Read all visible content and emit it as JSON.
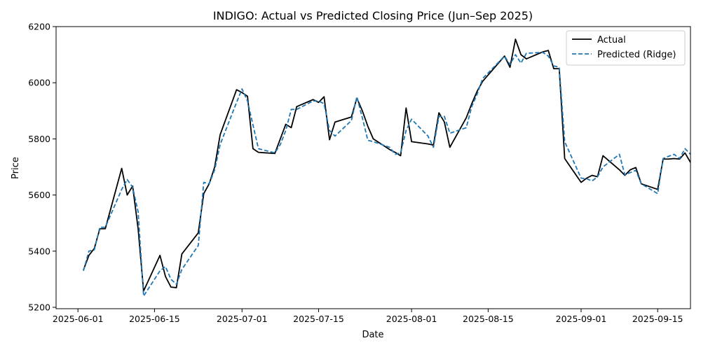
{
  "chart_data": {
    "type": "line",
    "title": "INDIGO: Actual vs Predicted Closing Price (Jun–Sep 2025)",
    "xlabel": "Date",
    "ylabel": "Price",
    "xlim": [
      "2025-05-28",
      "2025-09-21"
    ],
    "ylim": [
      5195,
      6200
    ],
    "x_ticks": [
      "2025-06-01",
      "2025-06-15",
      "2025-07-01",
      "2025-07-15",
      "2025-08-01",
      "2025-08-15",
      "2025-09-01",
      "2025-09-15"
    ],
    "y_ticks": [
      5200,
      5400,
      5600,
      5800,
      6000,
      6200
    ],
    "grid": false,
    "legend": "top-right",
    "series": [
      {
        "name": "Actual",
        "color": "#000000",
        "style": "solid",
        "points": [
          [
            "2025-06-02",
            5333
          ],
          [
            "2025-06-03",
            5385
          ],
          [
            "2025-06-04",
            5410
          ],
          [
            "2025-06-05",
            5480
          ],
          [
            "2025-06-06",
            5480
          ],
          [
            "2025-06-09",
            5695
          ],
          [
            "2025-06-10",
            5600
          ],
          [
            "2025-06-11",
            5632
          ],
          [
            "2025-06-12",
            5480
          ],
          [
            "2025-06-13",
            5258
          ],
          [
            "2025-06-16",
            5385
          ],
          [
            "2025-06-17",
            5310
          ],
          [
            "2025-06-18",
            5272
          ],
          [
            "2025-06-19",
            5270
          ],
          [
            "2025-06-20",
            5390
          ],
          [
            "2025-06-23",
            5465
          ],
          [
            "2025-06-24",
            5605
          ],
          [
            "2025-06-25",
            5640
          ],
          [
            "2025-06-26",
            5700
          ],
          [
            "2025-06-27",
            5815
          ],
          [
            "2025-06-30",
            5975
          ],
          [
            "2025-07-01",
            5965
          ],
          [
            "2025-07-02",
            5952
          ],
          [
            "2025-07-03",
            5765
          ],
          [
            "2025-07-04",
            5752
          ],
          [
            "2025-07-07",
            5748
          ],
          [
            "2025-07-08",
            5800
          ],
          [
            "2025-07-09",
            5852
          ],
          [
            "2025-07-10",
            5840
          ],
          [
            "2025-07-11",
            5915
          ],
          [
            "2025-07-14",
            5940
          ],
          [
            "2025-07-15",
            5930
          ],
          [
            "2025-07-16",
            5950
          ],
          [
            "2025-07-17",
            5797
          ],
          [
            "2025-07-18",
            5860
          ],
          [
            "2025-07-21",
            5878
          ],
          [
            "2025-07-22",
            5945
          ],
          [
            "2025-07-23",
            5900
          ],
          [
            "2025-07-24",
            5845
          ],
          [
            "2025-07-25",
            5800
          ],
          [
            "2025-07-28",
            5762
          ],
          [
            "2025-07-29",
            5752
          ],
          [
            "2025-07-30",
            5740
          ],
          [
            "2025-07-31",
            5910
          ],
          [
            "2025-08-01",
            5790
          ],
          [
            "2025-08-04",
            5782
          ],
          [
            "2025-08-05",
            5778
          ],
          [
            "2025-08-06",
            5893
          ],
          [
            "2025-08-07",
            5860
          ],
          [
            "2025-08-08",
            5770
          ],
          [
            "2025-08-11",
            5875
          ],
          [
            "2025-08-12",
            5925
          ],
          [
            "2025-08-13",
            5970
          ],
          [
            "2025-08-14",
            6005
          ],
          [
            "2025-08-18",
            6095
          ],
          [
            "2025-08-19",
            6055
          ],
          [
            "2025-08-20",
            6155
          ],
          [
            "2025-08-21",
            6100
          ],
          [
            "2025-08-22",
            6085
          ],
          [
            "2025-08-25",
            6110
          ],
          [
            "2025-08-26",
            6115
          ],
          [
            "2025-08-27",
            6050
          ],
          [
            "2025-08-28",
            6050
          ],
          [
            "2025-08-29",
            5730
          ],
          [
            "2025-09-01",
            5645
          ],
          [
            "2025-09-02",
            5660
          ],
          [
            "2025-09-03",
            5670
          ],
          [
            "2025-09-04",
            5665
          ],
          [
            "2025-09-05",
            5740
          ],
          [
            "2025-09-08",
            5690
          ],
          [
            "2025-09-09",
            5670
          ],
          [
            "2025-09-10",
            5690
          ],
          [
            "2025-09-11",
            5698
          ],
          [
            "2025-09-12",
            5640
          ],
          [
            "2025-09-15",
            5620
          ],
          [
            "2025-09-16",
            5728
          ],
          [
            "2025-09-17",
            5728
          ],
          [
            "2025-09-18",
            5730
          ],
          [
            "2025-09-19",
            5728
          ],
          [
            "2025-09-20",
            5750
          ],
          [
            "2025-09-21",
            5716
          ]
        ]
      },
      {
        "name": "Predicted (Ridge)",
        "color": "#1f77b4",
        "style": "dashed",
        "points": [
          [
            "2025-06-02",
            5330
          ],
          [
            "2025-06-03",
            5400
          ],
          [
            "2025-06-04",
            5405
          ],
          [
            "2025-06-05",
            5485
          ],
          [
            "2025-06-06",
            5485
          ],
          [
            "2025-06-09",
            5620
          ],
          [
            "2025-06-10",
            5655
          ],
          [
            "2025-06-11",
            5628
          ],
          [
            "2025-06-12",
            5540
          ],
          [
            "2025-06-13",
            5240
          ],
          [
            "2025-06-16",
            5330
          ],
          [
            "2025-06-17",
            5345
          ],
          [
            "2025-06-18",
            5300
          ],
          [
            "2025-06-19",
            5282
          ],
          [
            "2025-06-20",
            5335
          ],
          [
            "2025-06-23",
            5420
          ],
          [
            "2025-06-24",
            5645
          ],
          [
            "2025-06-25",
            5640
          ],
          [
            "2025-06-26",
            5690
          ],
          [
            "2025-06-27",
            5780
          ],
          [
            "2025-06-30",
            5930
          ],
          [
            "2025-07-01",
            5978
          ],
          [
            "2025-07-02",
            5935
          ],
          [
            "2025-07-03",
            5850
          ],
          [
            "2025-07-04",
            5765
          ],
          [
            "2025-07-07",
            5750
          ],
          [
            "2025-07-08",
            5780
          ],
          [
            "2025-07-09",
            5830
          ],
          [
            "2025-07-10",
            5905
          ],
          [
            "2025-07-11",
            5905
          ],
          [
            "2025-07-14",
            5935
          ],
          [
            "2025-07-15",
            5935
          ],
          [
            "2025-07-16",
            5925
          ],
          [
            "2025-07-17",
            5830
          ],
          [
            "2025-07-18",
            5810
          ],
          [
            "2025-07-21",
            5865
          ],
          [
            "2025-07-22",
            5950
          ],
          [
            "2025-07-23",
            5875
          ],
          [
            "2025-07-24",
            5795
          ],
          [
            "2025-07-25",
            5790
          ],
          [
            "2025-07-28",
            5770
          ],
          [
            "2025-07-29",
            5745
          ],
          [
            "2025-07-30",
            5750
          ],
          [
            "2025-07-31",
            5830
          ],
          [
            "2025-08-01",
            5870
          ],
          [
            "2025-08-04",
            5810
          ],
          [
            "2025-08-05",
            5770
          ],
          [
            "2025-08-06",
            5880
          ],
          [
            "2025-08-07",
            5880
          ],
          [
            "2025-08-08",
            5820
          ],
          [
            "2025-08-11",
            5840
          ],
          [
            "2025-08-12",
            5915
          ],
          [
            "2025-08-13",
            5960
          ],
          [
            "2025-08-14",
            6015
          ],
          [
            "2025-08-18",
            6095
          ],
          [
            "2025-08-19",
            6065
          ],
          [
            "2025-08-20",
            6100
          ],
          [
            "2025-08-21",
            6070
          ],
          [
            "2025-08-22",
            6105
          ],
          [
            "2025-08-25",
            6108
          ],
          [
            "2025-08-26",
            6095
          ],
          [
            "2025-08-27",
            6060
          ],
          [
            "2025-08-28",
            6055
          ],
          [
            "2025-08-29",
            5790
          ],
          [
            "2025-09-01",
            5660
          ],
          [
            "2025-09-02",
            5658
          ],
          [
            "2025-09-03",
            5650
          ],
          [
            "2025-09-04",
            5665
          ],
          [
            "2025-09-05",
            5700
          ],
          [
            "2025-09-08",
            5745
          ],
          [
            "2025-09-09",
            5672
          ],
          [
            "2025-09-10",
            5680
          ],
          [
            "2025-09-11",
            5688
          ],
          [
            "2025-09-12",
            5640
          ],
          [
            "2025-09-15",
            5605
          ],
          [
            "2025-09-16",
            5730
          ],
          [
            "2025-09-17",
            5738
          ],
          [
            "2025-09-18",
            5745
          ],
          [
            "2025-09-19",
            5730
          ],
          [
            "2025-09-20",
            5765
          ],
          [
            "2025-09-21",
            5745
          ]
        ]
      }
    ]
  }
}
